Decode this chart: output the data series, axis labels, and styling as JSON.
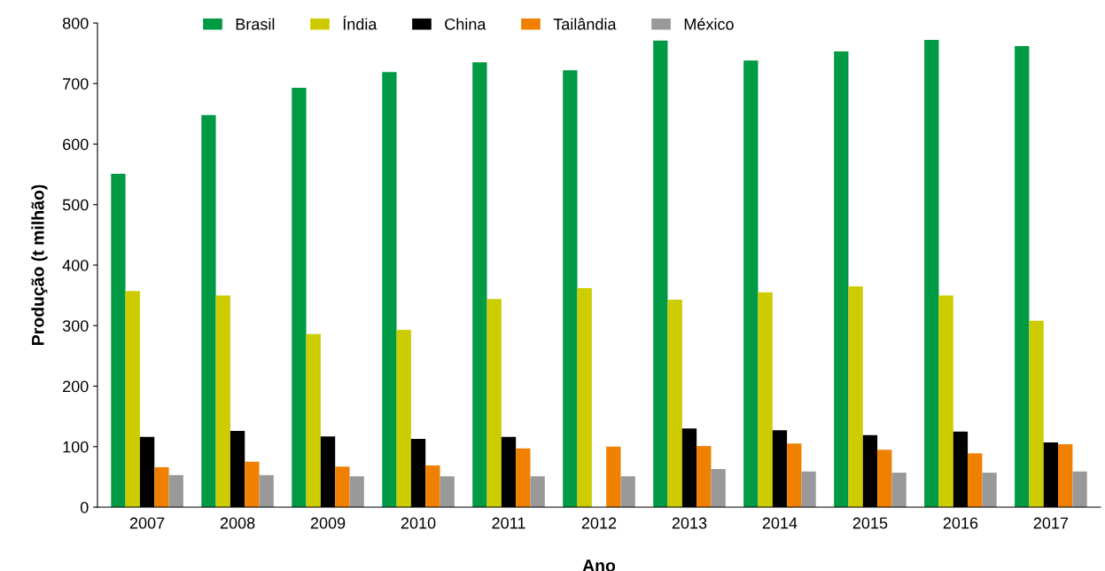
{
  "chart_data": {
    "type": "bar",
    "xlabel": "Ano",
    "ylabel": "Produção (t milhão)",
    "categories": [
      "2007",
      "2008",
      "2009",
      "2010",
      "2011",
      "2012",
      "2013",
      "2014",
      "2015",
      "2016",
      "2017"
    ],
    "series": [
      {
        "name": "Brasil",
        "color": "#009a44",
        "values": [
          551,
          648,
          693,
          719,
          735,
          722,
          771,
          738,
          753,
          772,
          762
        ]
      },
      {
        "name": "Índia",
        "color": "#cccc00",
        "values": [
          357,
          350,
          286,
          293,
          344,
          362,
          343,
          355,
          365,
          350,
          308
        ]
      },
      {
        "name": "China",
        "color": "#000000",
        "values": [
          116,
          126,
          117,
          113,
          116,
          null,
          130,
          127,
          119,
          125,
          107
        ]
      },
      {
        "name": "Tailândia",
        "color": "#f08000",
        "values": [
          66,
          75,
          67,
          69,
          97,
          100,
          101,
          105,
          95,
          89,
          104
        ]
      },
      {
        "name": "México",
        "color": "#999999",
        "values": [
          53,
          53,
          51,
          51,
          51,
          51,
          63,
          59,
          57,
          57,
          59
        ]
      }
    ],
    "ylim": [
      0,
      800
    ],
    "yticks": [
      0,
      100,
      200,
      300,
      400,
      500,
      600,
      700,
      800
    ],
    "grid": false,
    "legend": "top"
  }
}
